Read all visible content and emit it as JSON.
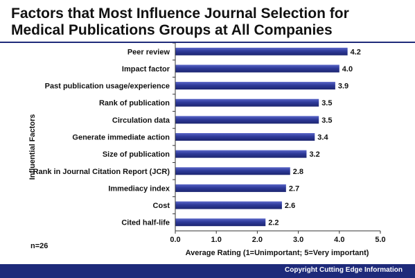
{
  "header": {
    "title": "Factors that Most Influence Journal Selection for\nMedical Publications Groups at All Companies"
  },
  "footer": {
    "sample_note": "n=26",
    "copyright": "Copyright Cutting Edge Information"
  },
  "chart_data": {
    "type": "bar",
    "orientation": "horizontal",
    "title": "Factors that Most Influence Journal Selection for Medical Publications Groups at All Companies",
    "xlabel": "Average Rating (1=Unimportant; 5=Very important)",
    "ylabel": "Influential Factors",
    "categories": [
      "Peer review",
      "Impact factor",
      "Past publication usage/experience",
      "Rank of publication",
      "Circulation data",
      "Generate immediate action",
      "Size of publication",
      "Rank in Journal Citation Report (JCR)",
      "Immediacy index",
      "Cost",
      "Cited half-life"
    ],
    "values": [
      4.2,
      4.0,
      3.9,
      3.5,
      3.5,
      3.4,
      3.2,
      2.8,
      2.7,
      2.6,
      2.2
    ],
    "value_labels": [
      "4.2",
      "4.0",
      "3.9",
      "3.5",
      "3.5",
      "3.4",
      "3.2",
      "2.8",
      "2.7",
      "2.6",
      "2.2"
    ],
    "xlim": [
      0,
      5
    ],
    "xticks": [
      0,
      1,
      2,
      3,
      4,
      5
    ],
    "xtick_labels": [
      "0.0",
      "1.0",
      "2.0",
      "3.0",
      "4.0",
      "5.0"
    ],
    "grid": false,
    "legend": "none",
    "bar_color": "#2e3a99"
  }
}
